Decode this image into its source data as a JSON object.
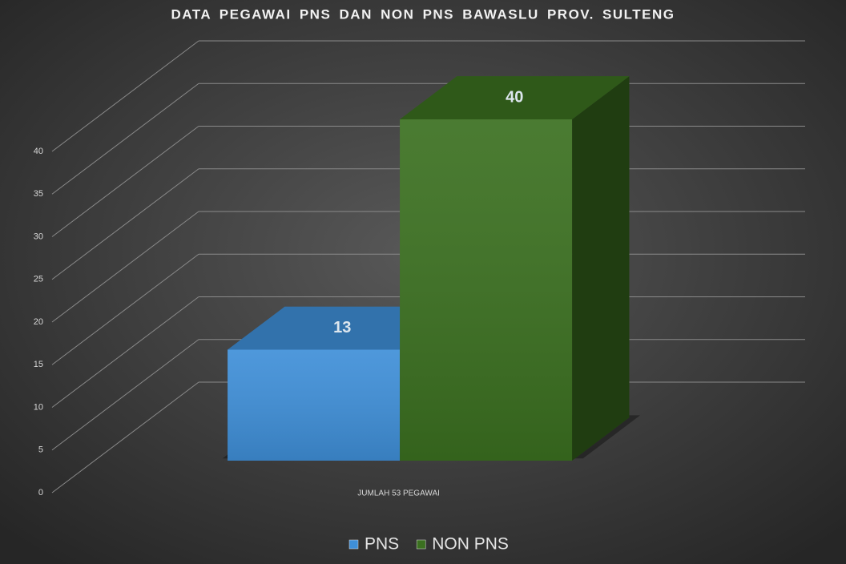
{
  "chart_data": {
    "type": "bar3d",
    "title": "DATA PEGAWAI PNS DAN NON PNS BAWASLU PROV. SULTENG",
    "categories": [
      "JUMLAH 53 PEGAWAI"
    ],
    "series": [
      {
        "name": "PNS",
        "color": "#3f8fd8",
        "values": [
          13
        ]
      },
      {
        "name": "NON PNS",
        "color": "#3b7020",
        "values": [
          40
        ]
      }
    ],
    "ylim": [
      0,
      40
    ],
    "yticks": [
      0,
      5,
      10,
      15,
      20,
      25,
      30,
      35,
      40
    ],
    "grid": true
  }
}
